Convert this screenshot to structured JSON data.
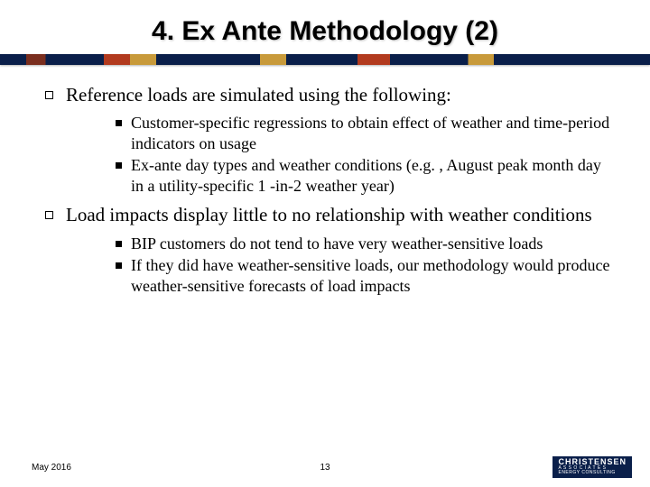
{
  "title": "4. Ex Ante Methodology (2)",
  "bullets": [
    {
      "text": "Reference loads are simulated using the following:",
      "subs": [
        "Customer-specific regressions to obtain effect of weather and time-period indicators on usage",
        "Ex-ante day types and weather conditions (e.g. , August peak month day in a utility-specific 1 -in-2 weather year)"
      ]
    },
    {
      "text": "Load impacts display little to no relationship with weather conditions",
      "subs": [
        "BIP customers do not tend to have very weather-sensitive loads",
        "If they did have weather-sensitive loads, our methodology would produce weather-sensitive forecasts of load impacts"
      ]
    }
  ],
  "footer": {
    "date": "May 2016",
    "page": "13",
    "logo_top": "CHRISTENSEN",
    "logo_mid": "A S S O C I A T E S",
    "logo_bot": "ENERGY CONSULTING"
  },
  "colors": {
    "navy": "#0a1f4a",
    "white": "#ffffff"
  }
}
